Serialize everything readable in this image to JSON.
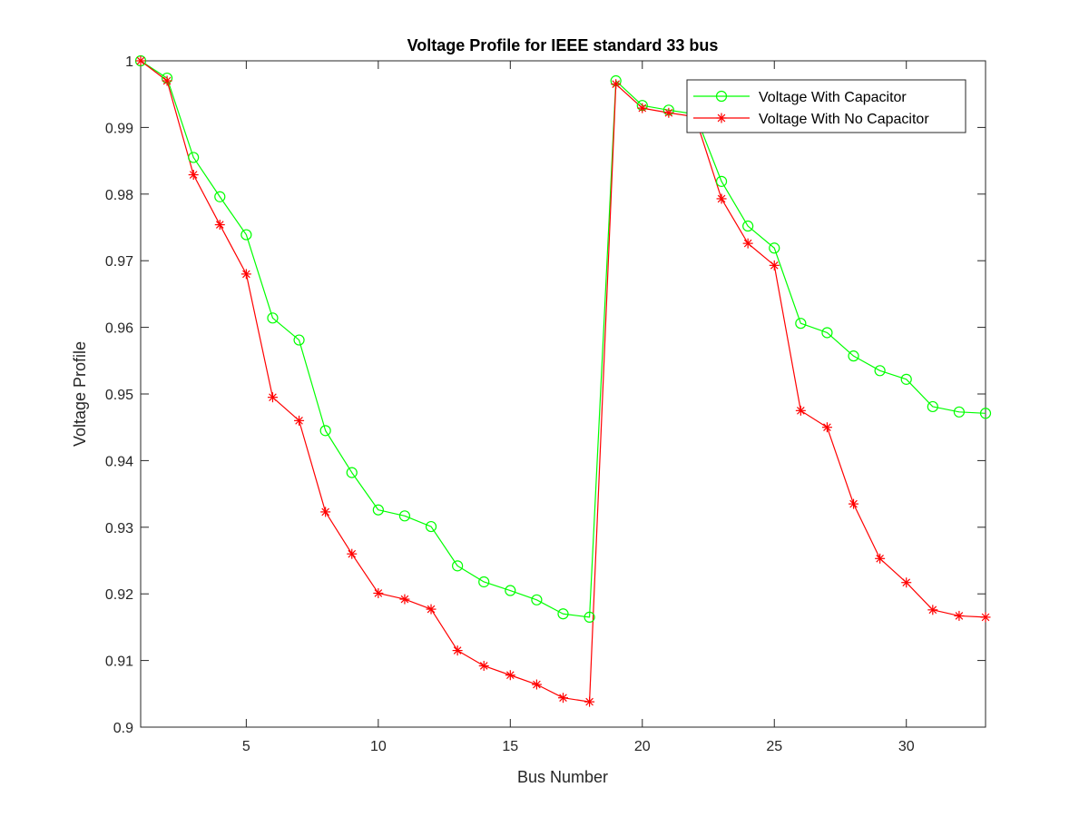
{
  "chart_data": {
    "type": "line",
    "title": "Voltage Profile for IEEE standard 33 bus",
    "xlabel": "Bus Number",
    "ylabel": "Voltage Profile",
    "xlim": [
      1,
      33
    ],
    "ylim": [
      0.9,
      1.0
    ],
    "xticks": [
      5,
      10,
      15,
      20,
      25,
      30
    ],
    "yticks": [
      0.9,
      0.91,
      0.92,
      0.93,
      0.94,
      0.95,
      0.96,
      0.97,
      0.98,
      0.99,
      1
    ],
    "ytick_labels": [
      "0.9",
      "0.91",
      "0.92",
      "0.93",
      "0.94",
      "0.95",
      "0.96",
      "0.97",
      "0.98",
      "0.99",
      "1"
    ],
    "grid": false,
    "legend_position": "top-right",
    "x": [
      1,
      2,
      3,
      4,
      5,
      6,
      7,
      8,
      9,
      10,
      11,
      12,
      13,
      14,
      15,
      16,
      17,
      18,
      19,
      20,
      21,
      22,
      23,
      24,
      25,
      26,
      27,
      28,
      29,
      30,
      31,
      32,
      33
    ],
    "series": [
      {
        "name": "Voltage With Capacitor",
        "color": "#00ff00",
        "marker": "circle",
        "values": [
          1.0,
          0.9974,
          0.9855,
          0.9796,
          0.9739,
          0.9614,
          0.9581,
          0.9445,
          0.9382,
          0.9326,
          0.9317,
          0.9301,
          0.9242,
          0.9218,
          0.9205,
          0.9191,
          0.917,
          0.9165,
          0.997,
          0.9933,
          0.9926,
          0.992,
          0.9819,
          0.9752,
          0.9719,
          0.9606,
          0.9592,
          0.9557,
          0.9535,
          0.9522,
          0.9481,
          0.9473,
          0.9471
        ]
      },
      {
        "name": "Voltage With No Capacitor",
        "color": "#ff0000",
        "marker": "asterisk",
        "values": [
          1.0,
          0.997,
          0.9829,
          0.9754,
          0.968,
          0.9495,
          0.946,
          0.9323,
          0.926,
          0.9201,
          0.9192,
          0.9177,
          0.9115,
          0.9092,
          0.9078,
          0.9064,
          0.9044,
          0.9038,
          0.9965,
          0.9929,
          0.9922,
          0.9916,
          0.9793,
          0.9726,
          0.9693,
          0.9475,
          0.945,
          0.9335,
          0.9253,
          0.9217,
          0.9176,
          0.9167,
          0.9165
        ]
      }
    ]
  }
}
